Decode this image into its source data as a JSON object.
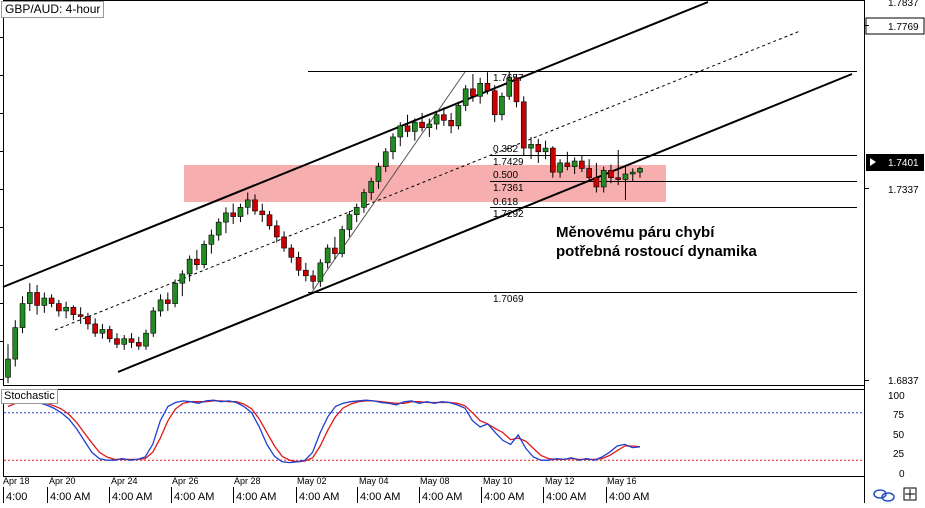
{
  "chart_title": "GBP/AUD: 4-hour",
  "annotation": {
    "line1": "Měnovému páru chybí",
    "line2": "potřebná rostoucí dynamika"
  },
  "colors": {
    "bull": "#228b22",
    "bear": "#cc0000",
    "zone": "#f4a0a0",
    "stoch_k": "#1f3fd0",
    "stoch_d": "#e01818",
    "overbought": "#2040d0",
    "oversold": "#e01818",
    "price_marker": "#000000"
  },
  "price_axis": {
    "labels": [
      "1.7837",
      "1.7769",
      "1.7401",
      "1.7337",
      "1.6837"
    ],
    "current_price": "1.7401",
    "highlight_price": "1.7769"
  },
  "fibonacci": {
    "high": "1.7657",
    "levels": [
      {
        "ratio": "0.382",
        "price": "1.7429"
      },
      {
        "ratio": "0.500",
        "price": "1.7361"
      },
      {
        "ratio": "0.618",
        "price": "1.7292"
      }
    ],
    "low": "1.7069"
  },
  "stochastic": {
    "label": "Stochastic",
    "axis_labels": [
      "100",
      "75",
      "50",
      "25",
      "0"
    ]
  },
  "time_axis": {
    "dates": [
      "Apr 18",
      "Apr 20",
      "Apr 24",
      "Apr 26",
      "Apr 28",
      "May 02",
      "May 04",
      "May 08",
      "May 10",
      "May 12",
      "May 16"
    ],
    "hours": [
      "4:00",
      "4:00 AM",
      "4:00 AM",
      "4:00 AM",
      "4:00 AM",
      "4:00 AM",
      "4:00 AM",
      "4:00 AM",
      "4:00 AM",
      "4:00 AM",
      "4:00 AM"
    ]
  },
  "chart_data": {
    "type": "candlestick",
    "symbol": "GBP/AUD",
    "timeframe": "4-hour",
    "ylim": [
      1.681,
      1.785
    ],
    "candles": [
      [
        1.6831,
        1.692,
        1.6815,
        1.688
      ],
      [
        1.688,
        1.6985,
        1.686,
        1.6965
      ],
      [
        1.6965,
        1.705,
        1.695,
        1.703
      ],
      [
        1.703,
        1.7085,
        1.701,
        1.706
      ],
      [
        1.706,
        1.708,
        1.7,
        1.7025
      ],
      [
        1.7025,
        1.706,
        1.7005,
        1.7045
      ],
      [
        1.7045,
        1.7055,
        1.702,
        1.703
      ],
      [
        1.703,
        1.704,
        1.6995,
        1.701
      ],
      [
        1.701,
        1.7035,
        1.699,
        1.702
      ],
      [
        1.702,
        1.7025,
        1.6985,
        1.7
      ],
      [
        1.7,
        1.702,
        1.6975,
        1.6995
      ],
      [
        1.6995,
        1.7005,
        1.696,
        1.6975
      ],
      [
        1.6975,
        1.699,
        1.694,
        1.695
      ],
      [
        1.695,
        1.6975,
        1.6935,
        1.696
      ],
      [
        1.696,
        1.697,
        1.6925,
        1.6935
      ],
      [
        1.6935,
        1.695,
        1.691,
        1.692
      ],
      [
        1.692,
        1.6945,
        1.6905,
        1.6935
      ],
      [
        1.6935,
        1.695,
        1.691,
        1.6925
      ],
      [
        1.6925,
        1.694,
        1.6905,
        1.6915
      ],
      [
        1.6915,
        1.696,
        1.6905,
        1.695
      ],
      [
        1.695,
        1.702,
        1.694,
        1.701
      ],
      [
        1.701,
        1.7055,
        1.6995,
        1.704
      ],
      [
        1.704,
        1.706,
        1.701,
        1.703
      ],
      [
        1.703,
        1.7095,
        1.702,
        1.7085
      ],
      [
        1.7085,
        1.712,
        1.705,
        1.711
      ],
      [
        1.711,
        1.716,
        1.709,
        1.715
      ],
      [
        1.715,
        1.7175,
        1.712,
        1.7135
      ],
      [
        1.7135,
        1.72,
        1.7125,
        1.719
      ],
      [
        1.719,
        1.723,
        1.7165,
        1.7215
      ],
      [
        1.7215,
        1.726,
        1.72,
        1.725
      ],
      [
        1.725,
        1.729,
        1.722,
        1.7275
      ],
      [
        1.7275,
        1.73,
        1.7245,
        1.7265
      ],
      [
        1.7265,
        1.73,
        1.725,
        1.729
      ],
      [
        1.729,
        1.733,
        1.727,
        1.731
      ],
      [
        1.731,
        1.7325,
        1.727,
        1.728
      ],
      [
        1.728,
        1.73,
        1.725,
        1.727
      ],
      [
        1.727,
        1.728,
        1.723,
        1.724
      ],
      [
        1.724,
        1.7255,
        1.7195,
        1.721
      ],
      [
        1.721,
        1.7225,
        1.717,
        1.718
      ],
      [
        1.718,
        1.719,
        1.714,
        1.7155
      ],
      [
        1.7155,
        1.717,
        1.7105,
        1.712
      ],
      [
        1.712,
        1.714,
        1.709,
        1.7105
      ],
      [
        1.7105,
        1.712,
        1.707,
        1.709
      ],
      [
        1.709,
        1.715,
        1.7075,
        1.714
      ],
      [
        1.714,
        1.719,
        1.7125,
        1.718
      ],
      [
        1.718,
        1.721,
        1.715,
        1.7165
      ],
      [
        1.7165,
        1.724,
        1.7155,
        1.723
      ],
      [
        1.723,
        1.728,
        1.721,
        1.727
      ],
      [
        1.727,
        1.73,
        1.725,
        1.729
      ],
      [
        1.729,
        1.734,
        1.7275,
        1.733
      ],
      [
        1.733,
        1.737,
        1.731,
        1.736
      ],
      [
        1.736,
        1.741,
        1.734,
        1.74
      ],
      [
        1.74,
        1.745,
        1.7385,
        1.744
      ],
      [
        1.744,
        1.749,
        1.742,
        1.748
      ],
      [
        1.748,
        1.752,
        1.7455,
        1.751
      ],
      [
        1.751,
        1.754,
        1.748,
        1.7495
      ],
      [
        1.7495,
        1.753,
        1.747,
        1.752
      ],
      [
        1.752,
        1.7545,
        1.7495,
        1.7505
      ],
      [
        1.7505,
        1.753,
        1.748,
        1.7515
      ],
      [
        1.7515,
        1.755,
        1.75,
        1.754
      ],
      [
        1.754,
        1.756,
        1.751,
        1.7525
      ],
      [
        1.7525,
        1.7545,
        1.749,
        1.751
      ],
      [
        1.751,
        1.7575,
        1.75,
        1.7565
      ],
      [
        1.7565,
        1.762,
        1.755,
        1.761
      ],
      [
        1.761,
        1.765,
        1.7575,
        1.759
      ],
      [
        1.759,
        1.764,
        1.757,
        1.7625
      ],
      [
        1.7625,
        1.7655,
        1.7595,
        1.7605
      ],
      [
        1.7605,
        1.762,
        1.752,
        1.754
      ],
      [
        1.754,
        1.76,
        1.7525,
        1.759
      ],
      [
        1.759,
        1.7657,
        1.758,
        1.764
      ],
      [
        1.764,
        1.765,
        1.756,
        1.7575
      ],
      [
        1.7575,
        1.759,
        1.743,
        1.745
      ],
      [
        1.745,
        1.748,
        1.742,
        1.746
      ],
      [
        1.746,
        1.7475,
        1.741,
        1.744
      ],
      [
        1.744,
        1.747,
        1.742,
        1.745
      ],
      [
        1.745,
        1.7455,
        1.737,
        1.7385
      ],
      [
        1.7385,
        1.742,
        1.737,
        1.741
      ],
      [
        1.741,
        1.744,
        1.739,
        1.74
      ],
      [
        1.74,
        1.7425,
        1.738,
        1.7415
      ],
      [
        1.7415,
        1.743,
        1.7385,
        1.7395
      ],
      [
        1.7395,
        1.742,
        1.736,
        1.737
      ],
      [
        1.737,
        1.741,
        1.733,
        1.7345
      ],
      [
        1.7345,
        1.74,
        1.733,
        1.739
      ],
      [
        1.739,
        1.7405,
        1.7355,
        1.737
      ],
      [
        1.737,
        1.7445,
        1.735,
        1.7365
      ],
      [
        1.7365,
        1.74,
        1.731,
        1.738
      ],
      [
        1.738,
        1.7395,
        1.736,
        1.7385
      ],
      [
        1.7385,
        1.74,
        1.737,
        1.7395
      ]
    ],
    "stochastic_k": [
      92,
      95,
      96,
      95,
      93,
      90,
      86,
      80,
      72,
      60,
      45,
      30,
      22,
      20,
      20,
      22,
      20,
      21,
      24,
      40,
      70,
      88,
      93,
      95,
      94,
      92,
      95,
      96,
      94,
      95,
      93,
      88,
      80,
      62,
      40,
      25,
      18,
      17,
      18,
      20,
      30,
      55,
      75,
      88,
      92,
      94,
      95,
      96,
      95,
      93,
      92,
      90,
      94,
      95,
      92,
      94,
      92,
      94,
      93,
      90,
      86,
      70,
      62,
      66,
      55,
      45,
      40,
      52,
      35,
      24,
      20,
      20,
      22,
      21,
      23,
      20,
      22,
      20,
      24,
      30,
      38,
      40,
      36,
      37
    ],
    "stochastic_d": [
      88,
      92,
      94,
      95,
      94,
      92,
      89,
      85,
      78,
      68,
      55,
      42,
      30,
      24,
      21,
      21,
      21,
      21,
      22,
      30,
      48,
      70,
      85,
      92,
      94,
      94,
      94,
      95,
      95,
      94,
      94,
      91,
      85,
      72,
      55,
      38,
      25,
      20,
      18,
      19,
      23,
      38,
      58,
      75,
      86,
      91,
      94,
      95,
      95,
      94,
      93,
      92,
      92,
      94,
      94,
      93,
      93,
      93,
      93,
      92,
      89,
      80,
      70,
      66,
      60,
      55,
      46,
      48,
      44,
      35,
      26,
      22,
      21,
      21,
      22,
      21,
      21,
      21,
      22,
      26,
      32,
      38,
      38,
      37
    ],
    "stochastic_levels": [
      80,
      20
    ]
  }
}
